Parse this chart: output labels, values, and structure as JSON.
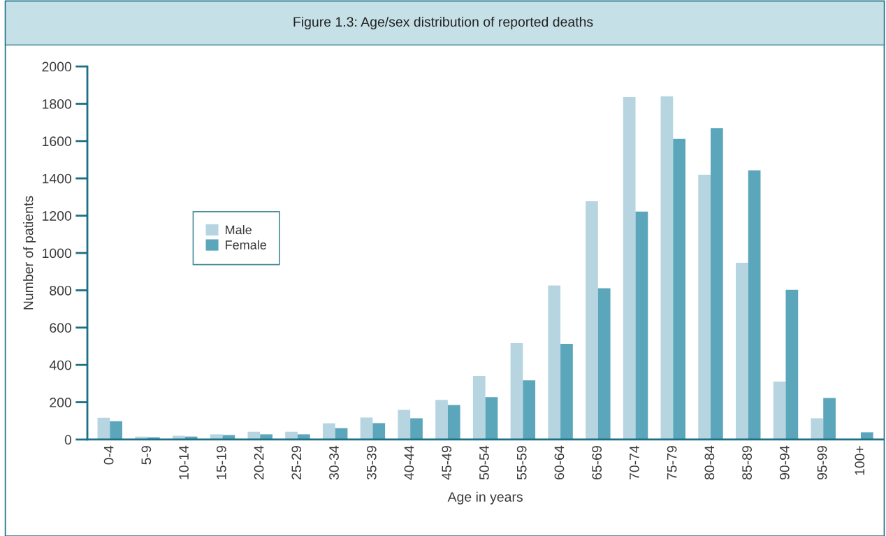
{
  "chart_data": {
    "type": "bar",
    "title": "Figure 1.3: Age/sex distribution of reported deaths",
    "xlabel": "Age in years",
    "ylabel": "Number of patients",
    "categories": [
      "0-4",
      "5-9",
      "10-14",
      "15-19",
      "20-24",
      "25-29",
      "30-34",
      "35-39",
      "40-44",
      "45-49",
      "50-54",
      "55-59",
      "60-64",
      "65-69",
      "70-74",
      "75-79",
      "80-84",
      "85-89",
      "90-94",
      "95-99",
      "100+"
    ],
    "series": [
      {
        "name": "Male",
        "color": "#b7d5e0",
        "values": [
          117,
          16,
          20,
          28,
          42,
          42,
          87,
          118,
          159,
          212,
          341,
          517,
          826,
          1277,
          1836,
          1840,
          1420,
          948,
          311,
          114,
          null
        ]
      },
      {
        "name": "Female",
        "color": "#5ba6bb",
        "values": [
          98,
          12,
          16,
          24,
          28,
          28,
          61,
          88,
          114,
          185,
          227,
          317,
          513,
          811,
          1222,
          1612,
          1670,
          1443,
          802,
          223,
          39
        ]
      }
    ],
    "ylim": [
      0,
      2000
    ],
    "yticks": [
      0,
      200,
      400,
      600,
      800,
      1000,
      1200,
      1400,
      1600,
      1800,
      2000
    ],
    "grid": false,
    "legend": "left"
  }
}
